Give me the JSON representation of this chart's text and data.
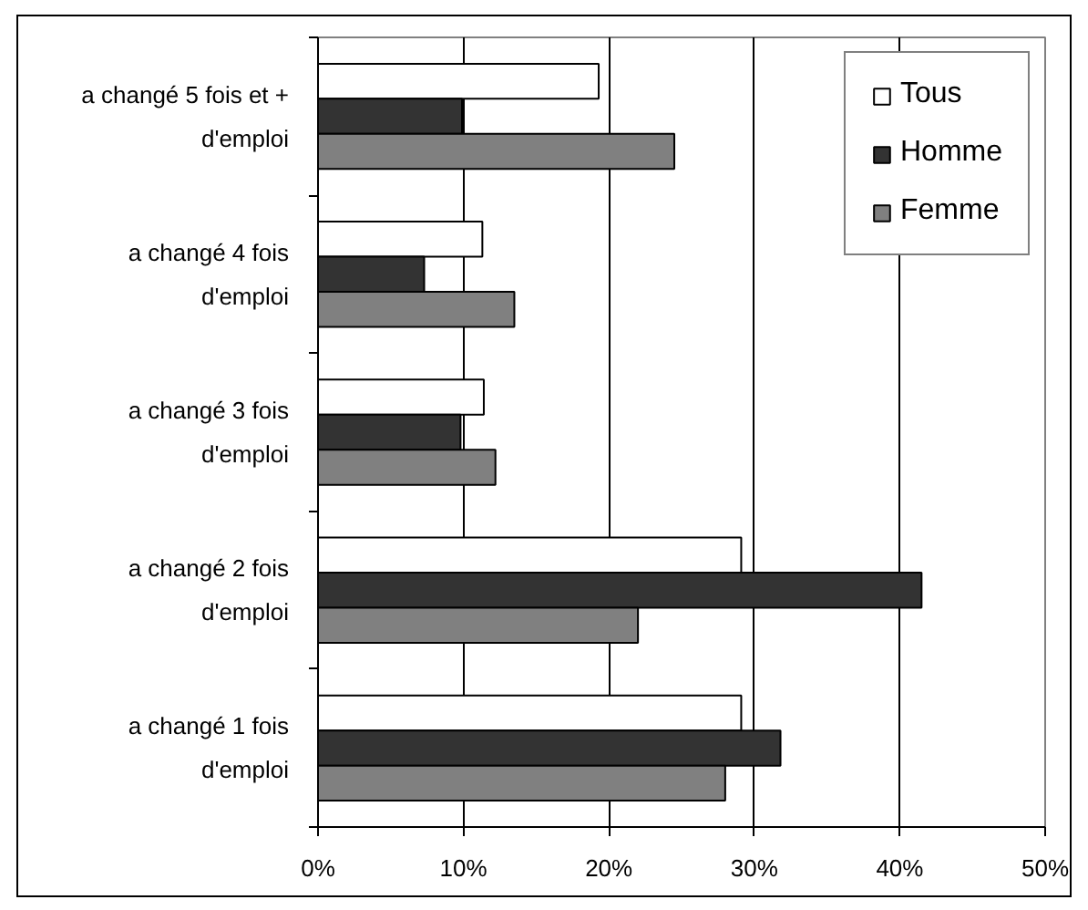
{
  "chart_data": {
    "type": "bar",
    "orientation": "horizontal",
    "categories": [
      "a changé 5 fois et + d'emploi",
      "a changé 4 fois d'emploi",
      "a changé 3 fois d'emploi",
      "a changé 2 fois d'emploi",
      "a changé 1 fois d'emploi"
    ],
    "series": [
      {
        "name": "Tous",
        "color": "#ffffff",
        "values": [
          19.3,
          11.3,
          11.4,
          29.1,
          29.1
        ]
      },
      {
        "name": "Homme",
        "color": "#333333",
        "values": [
          9.9,
          7.3,
          9.8,
          41.5,
          31.8
        ]
      },
      {
        "name": "Femme",
        "color": "#808080",
        "values": [
          24.5,
          13.5,
          12.2,
          22.0,
          28.0
        ]
      }
    ],
    "xlim": [
      0,
      50
    ],
    "xticks": [
      {
        "value": 0,
        "label": "0%"
      },
      {
        "value": 10,
        "label": "10%"
      },
      {
        "value": 20,
        "label": "20%"
      },
      {
        "value": 30,
        "label": "30%"
      },
      {
        "value": 40,
        "label": "40%"
      },
      {
        "value": 50,
        "label": "50%"
      }
    ],
    "grid": "x",
    "legend": "top right"
  }
}
